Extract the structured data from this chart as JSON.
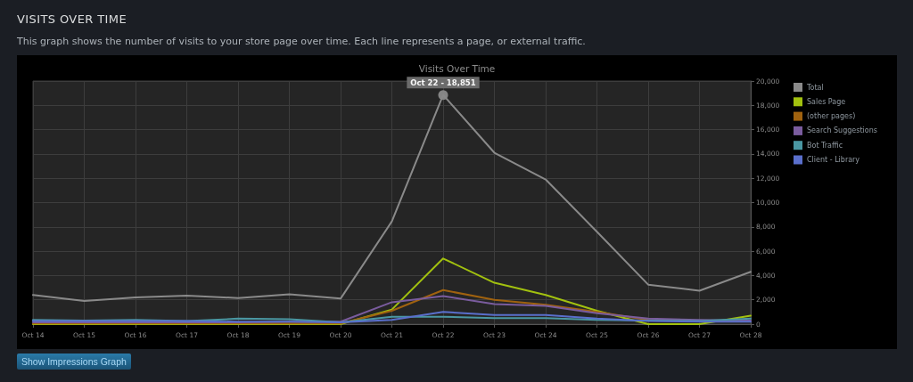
{
  "chart_data": {
    "type": "line",
    "title": "VISITS OVER TIME",
    "subtitle": "This graph shows the number of visits to your store page over time. Each line represents a page, or external traffic.",
    "annotations": [
      "Visits Over Time",
      {
        "text": "Oct 22 - 18,851",
        "x": "Oct 22",
        "y": 18851
      },
      "Show Impressions Graph"
    ],
    "categories": [
      "Oct 14",
      "Oct 15",
      "Oct 16",
      "Oct 17",
      "Oct 18",
      "Oct 19",
      "Oct 20",
      "Oct 21",
      "Oct 22",
      "Oct 23",
      "Oct 24",
      "Oct 25",
      "Oct 26",
      "Oct 27",
      "Oct 28"
    ],
    "series": [
      {
        "name": "Total",
        "color": "#8a8a8a",
        "values": [
          2400,
          1900,
          2200,
          2350,
          2150,
          2450,
          2100,
          8450,
          18851,
          14100,
          11900,
          7600,
          3250,
          2750,
          4300
        ]
      },
      {
        "name": "Sales Page",
        "color": "#a2c10f",
        "values": [
          0,
          0,
          0,
          0,
          0,
          0,
          0,
          1200,
          5400,
          3400,
          2400,
          1100,
          0,
          0,
          700
        ]
      },
      {
        "name": "(other pages)",
        "color": "#a0620f",
        "values": [
          50,
          50,
          50,
          50,
          50,
          50,
          50,
          1100,
          2800,
          2000,
          1600,
          1000,
          350,
          250,
          250
        ]
      },
      {
        "name": "Search Suggestions",
        "color": "#7a5c9e",
        "values": [
          150,
          150,
          150,
          150,
          150,
          200,
          200,
          1800,
          2300,
          1650,
          1500,
          900,
          450,
          350,
          300
        ]
      },
      {
        "name": "Bot Traffic",
        "color": "#4a97a3",
        "values": [
          350,
          300,
          350,
          250,
          450,
          400,
          150,
          600,
          600,
          500,
          500,
          350,
          300,
          250,
          450
        ]
      },
      {
        "name": "Client - Library",
        "color": "#5a6fcc",
        "values": [
          250,
          250,
          250,
          250,
          200,
          200,
          150,
          350,
          1000,
          750,
          750,
          450,
          250,
          200,
          200
        ]
      }
    ],
    "ylim": [
      0,
      20000
    ],
    "yticks": [
      0,
      {
        "value": 2000,
        "label": "2,000"
      },
      {
        "value": 4000,
        "label": "4,000"
      },
      {
        "value": 6000,
        "label": "6,000"
      },
      {
        "value": 8000,
        "label": "8,000"
      },
      {
        "value": 10000,
        "label": "10,000"
      },
      {
        "value": 12000,
        "label": "12,000"
      },
      {
        "value": 14000,
        "label": "14,000"
      },
      {
        "value": 16000,
        "label": "16,000"
      },
      {
        "value": 18000,
        "label": "18,000"
      },
      {
        "value": 20000,
        "label": "20,000"
      }
    ],
    "grid": true,
    "legend": "top right"
  }
}
